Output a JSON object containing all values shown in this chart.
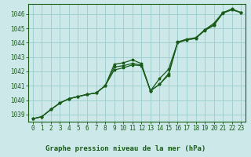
{
  "title": "Graphe pression niveau de la mer (hPa)",
  "bg_color": "#cce8e8",
  "grid_color": "#99cccc",
  "line_color": "#1a5c1a",
  "text_color": "#1a5c1a",
  "ylim": [
    1038.5,
    1046.7
  ],
  "xlim": [
    -0.5,
    23.5
  ],
  "yticks": [
    1039,
    1040,
    1041,
    1042,
    1043,
    1044,
    1045,
    1046
  ],
  "xticks": [
    0,
    1,
    2,
    3,
    4,
    5,
    6,
    7,
    8,
    9,
    10,
    11,
    12,
    13,
    14,
    15,
    16,
    17,
    18,
    19,
    20,
    21,
    22,
    23
  ],
  "s1_x": [
    0,
    1,
    2,
    3,
    4,
    5,
    6,
    7,
    8,
    9,
    10,
    11,
    12,
    13,
    14,
    15,
    16,
    17,
    18,
    19,
    20,
    21,
    22,
    23
  ],
  "s1_y": [
    1038.7,
    1038.85,
    1039.35,
    1039.8,
    1040.1,
    1040.25,
    1040.4,
    1040.5,
    1041.0,
    1042.1,
    1042.25,
    1042.45,
    1042.4,
    1040.65,
    1041.1,
    1041.75,
    1044.0,
    1044.2,
    1044.3,
    1044.85,
    1045.2,
    1046.05,
    1046.3,
    1046.1
  ],
  "s2_x": [
    0,
    1,
    2,
    3,
    4,
    5,
    6,
    7,
    8,
    9,
    10,
    11,
    12,
    13,
    14,
    15,
    16,
    17,
    18,
    19,
    20,
    21,
    22,
    23
  ],
  "s2_y": [
    1038.7,
    1038.85,
    1039.35,
    1039.8,
    1040.1,
    1040.25,
    1040.4,
    1040.5,
    1041.0,
    1042.5,
    1042.6,
    1042.8,
    1042.55,
    1040.65,
    1041.5,
    1042.15,
    1044.0,
    1044.2,
    1044.3,
    1044.9,
    1045.25,
    1046.1,
    1046.35,
    1046.1
  ],
  "s3_x": [
    0,
    1,
    2,
    3,
    4,
    5,
    6,
    7,
    8,
    9,
    10,
    11,
    12,
    13,
    14,
    15,
    16,
    17,
    18,
    19,
    20,
    21,
    22,
    23
  ],
  "s3_y": [
    1038.7,
    1038.85,
    1039.35,
    1039.8,
    1040.1,
    1040.25,
    1040.4,
    1040.5,
    1041.0,
    1042.3,
    1042.4,
    1042.55,
    1042.45,
    1040.65,
    1041.1,
    1041.85,
    1044.05,
    1044.25,
    1044.35,
    1044.9,
    1045.35,
    1046.1,
    1046.3,
    1046.1
  ],
  "ylabel_fontsize": 5.5,
  "xlabel_fontsize": 6.5,
  "tick_fontsize": 5.5
}
